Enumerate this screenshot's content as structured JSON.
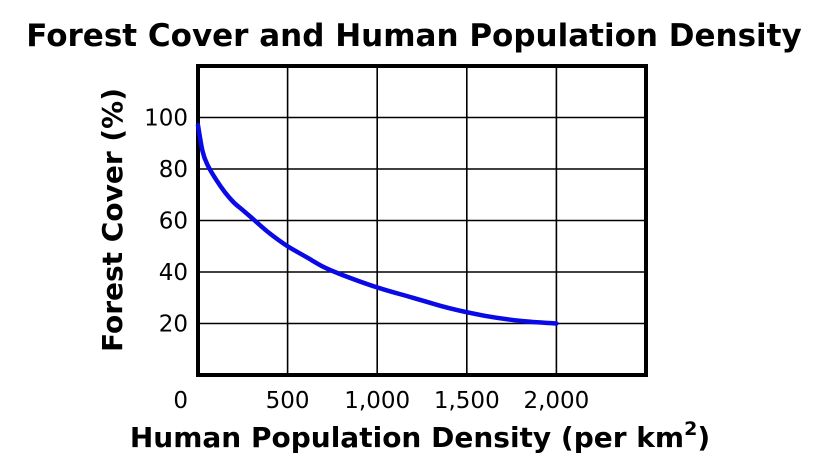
{
  "chart_data": {
    "type": "line",
    "title": "Forest Cover and Human Population Density",
    "xlabel": "Human Population Density (per km",
    "xlabel_sup": "2",
    "xlabel_close": ")",
    "ylabel": "Forest Cover (%)",
    "xlim": [
      0,
      2500
    ],
    "ylim": [
      0,
      120
    ],
    "xticks": [
      0,
      500,
      1000,
      1500,
      2000
    ],
    "xtick_labels": [
      "0",
      "500",
      "1,000",
      "1,500",
      "2,000"
    ],
    "yticks": [
      20,
      40,
      60,
      80,
      100
    ],
    "ytick_labels": [
      "20",
      "40",
      "60",
      "80",
      "100"
    ],
    "grid": true,
    "colors": {
      "line": "#0a0ae6",
      "grid": "#000000"
    },
    "series": [
      {
        "x": [
          0,
          25,
          50,
          100,
          150,
          200,
          250,
          300,
          400,
          500,
          600,
          700,
          800,
          1000,
          1200,
          1400,
          1600,
          1800,
          2000
        ],
        "y": [
          97,
          87,
          82,
          76,
          71,
          67,
          64,
          61,
          55,
          50,
          46,
          42,
          39,
          34,
          30,
          26,
          23,
          21,
          20
        ]
      }
    ]
  }
}
